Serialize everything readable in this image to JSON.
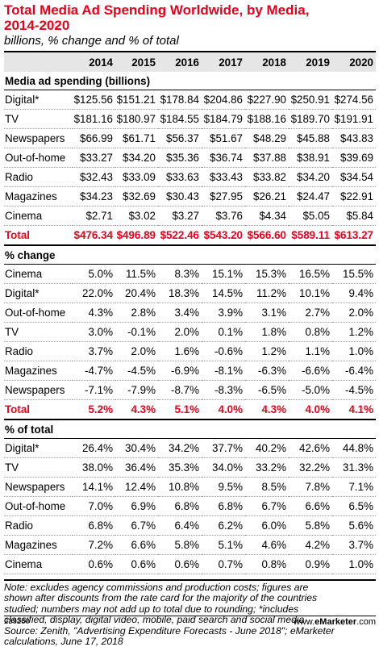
{
  "header": {
    "title_line1": "Total Media Ad Spending Worldwide, by Media,",
    "title_line2": "2014-2020",
    "subtitle": "billions, % change and % of total"
  },
  "chart_data": {
    "type": "table",
    "title": "Total Media Ad Spending Worldwide, by Media, 2014-2020",
    "subtitle": "billions, % change and % of total",
    "columns": [
      "2014",
      "2015",
      "2016",
      "2017",
      "2018",
      "2019",
      "2020"
    ],
    "sections": [
      {
        "name": "Media ad spending (billions)",
        "rows": [
          {
            "label": "Digital*",
            "values": [
              "$125.56",
              "$151.21",
              "$178.84",
              "$204.86",
              "$227.90",
              "$250.91",
              "$274.56"
            ]
          },
          {
            "label": "TV",
            "values": [
              "$181.16",
              "$180.97",
              "$184.55",
              "$184.79",
              "$188.16",
              "$189.70",
              "$191.91"
            ]
          },
          {
            "label": "Newspapers",
            "values": [
              "$66.99",
              "$61.71",
              "$56.37",
              "$51.67",
              "$48.29",
              "$45.88",
              "$43.83"
            ]
          },
          {
            "label": "Out-of-home",
            "values": [
              "$33.27",
              "$34.20",
              "$35.36",
              "$36.74",
              "$37.88",
              "$38.91",
              "$39.69"
            ]
          },
          {
            "label": "Radio",
            "values": [
              "$32.43",
              "$33.09",
              "$33.63",
              "$33.43",
              "$33.82",
              "$34.20",
              "$34.54"
            ]
          },
          {
            "label": "Magazines",
            "values": [
              "$34.23",
              "$32.69",
              "$30.43",
              "$27.95",
              "$26.21",
              "$24.47",
              "$22.91"
            ]
          },
          {
            "label": "Cinema",
            "values": [
              "$2.71",
              "$3.02",
              "$3.27",
              "$3.76",
              "$4.34",
              "$5.05",
              "$5.84"
            ]
          }
        ],
        "total": {
          "label": "Total",
          "values": [
            "$476.34",
            "$496.89",
            "$522.46",
            "$543.20",
            "$566.60",
            "$589.11",
            "$613.27"
          ]
        }
      },
      {
        "name": "% change",
        "rows": [
          {
            "label": "Cinema",
            "values": [
              "5.0%",
              "11.5%",
              "8.3%",
              "15.1%",
              "15.3%",
              "16.5%",
              "15.5%"
            ]
          },
          {
            "label": "Digital*",
            "values": [
              "22.0%",
              "20.4%",
              "18.3%",
              "14.5%",
              "11.2%",
              "10.1%",
              "9.4%"
            ]
          },
          {
            "label": "Out-of-home",
            "values": [
              "4.3%",
              "2.8%",
              "3.4%",
              "3.9%",
              "3.1%",
              "2.7%",
              "2.0%"
            ]
          },
          {
            "label": "TV",
            "values": [
              "3.0%",
              "-0.1%",
              "2.0%",
              "0.1%",
              "1.8%",
              "0.8%",
              "1.2%"
            ]
          },
          {
            "label": "Radio",
            "values": [
              "3.7%",
              "2.0%",
              "1.6%",
              "-0.6%",
              "1.2%",
              "1.1%",
              "1.0%"
            ]
          },
          {
            "label": "Magazines",
            "values": [
              "-4.7%",
              "-4.5%",
              "-6.9%",
              "-8.1%",
              "-6.3%",
              "-6.6%",
              "-6.4%"
            ]
          },
          {
            "label": "Newspapers",
            "values": [
              "-7.1%",
              "-7.9%",
              "-8.7%",
              "-8.3%",
              "-6.5%",
              "-5.0%",
              "-4.5%"
            ]
          }
        ],
        "total": {
          "label": "Total",
          "values": [
            "5.2%",
            "4.3%",
            "5.1%",
            "4.0%",
            "4.3%",
            "4.0%",
            "4.1%"
          ]
        }
      },
      {
        "name": "% of total",
        "rows": [
          {
            "label": "Digital*",
            "values": [
              "26.4%",
              "30.4%",
              "34.2%",
              "37.7%",
              "40.2%",
              "42.6%",
              "44.8%"
            ]
          },
          {
            "label": "TV",
            "values": [
              "38.0%",
              "36.4%",
              "35.3%",
              "34.0%",
              "33.2%",
              "32.2%",
              "31.3%"
            ]
          },
          {
            "label": "Newspapers",
            "values": [
              "14.1%",
              "12.4%",
              "10.8%",
              "9.5%",
              "8.5%",
              "7.8%",
              "7.1%"
            ]
          },
          {
            "label": "Out-of-home",
            "values": [
              "7.0%",
              "6.9%",
              "6.8%",
              "6.8%",
              "6.7%",
              "6.6%",
              "6.5%"
            ]
          },
          {
            "label": "Radio",
            "values": [
              "6.8%",
              "6.7%",
              "6.4%",
              "6.2%",
              "6.0%",
              "5.8%",
              "5.6%"
            ]
          },
          {
            "label": "Magazines",
            "values": [
              "7.2%",
              "6.6%",
              "5.8%",
              "5.1%",
              "4.6%",
              "4.2%",
              "3.7%"
            ]
          },
          {
            "label": "Cinema",
            "values": [
              "0.6%",
              "0.6%",
              "0.6%",
              "0.7%",
              "0.8%",
              "0.9%",
              "1.0%"
            ]
          }
        ]
      }
    ]
  },
  "notes": {
    "line1": "Note: excludes agency commissions and production costs; figures are",
    "line2": "shown after discounts from the rate card for the majority of the countries",
    "line3": "studied; numbers may not add up to total due to rounding; *includes",
    "line4": "classified, display, digital video, mobile, paid search and social media",
    "line5": "Source: Zenith, \"Advertising Expenditure Forecasts - June 2018\"; eMarketer",
    "line6": "calculations, June 17, 2018"
  },
  "footer": {
    "chart_id": "239260",
    "brand_prefix": "www.",
    "brand_name": "eMarketer",
    "brand_suffix": ".com"
  },
  "colors": {
    "accent": "#e8001c",
    "header_bg": "#e6e6e6"
  }
}
